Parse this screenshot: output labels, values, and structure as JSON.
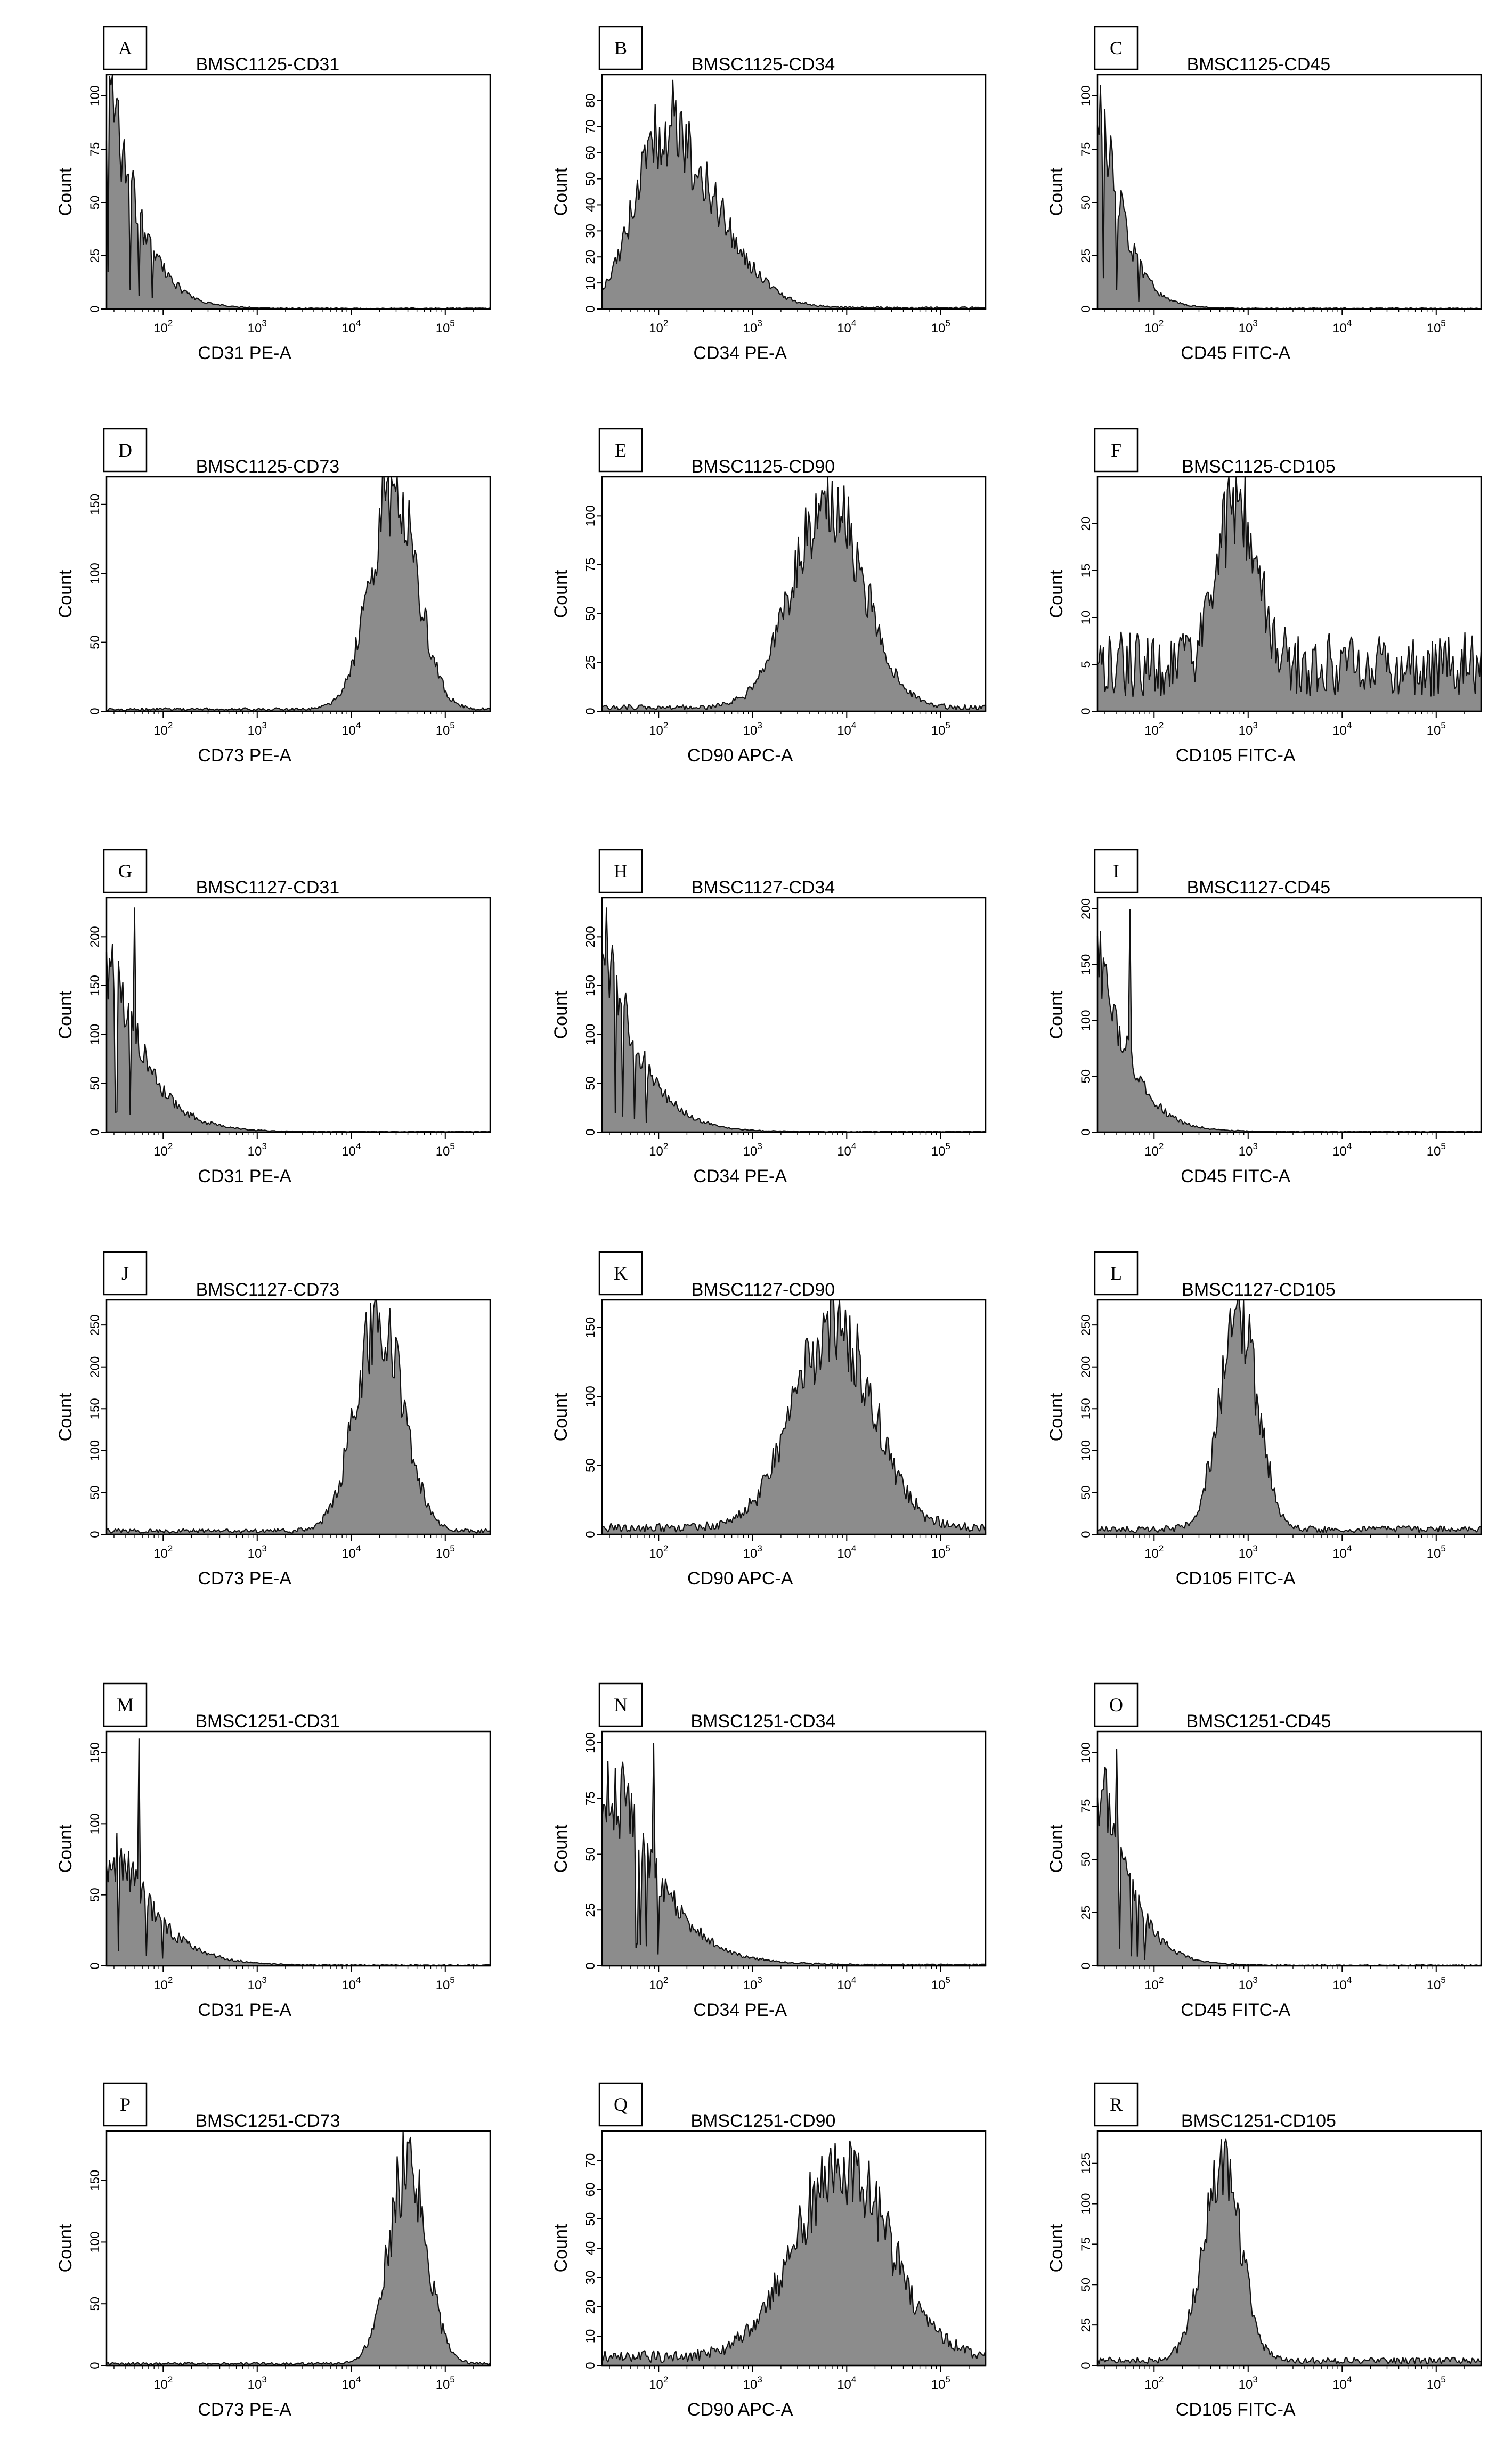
{
  "figure": {
    "columns": 3
  },
  "chart_data": [
    {
      "type": "area",
      "panel_label": "A",
      "title": "BMSC1125-CD31",
      "xlabel": "CD31 PE-A",
      "ylabel": "Count",
      "x_scale": "log",
      "xlim": [
        25,
        300000
      ],
      "ylim": [
        0,
        110
      ],
      "x_ticks": [
        {
          "label": "10",
          "sup": "2",
          "value": 100
        },
        {
          "label": "10",
          "sup": "3",
          "value": 1000
        },
        {
          "label": "10",
          "sup": "4",
          "value": 10000
        },
        {
          "label": "10",
          "sup": "5",
          "value": 100000
        }
      ],
      "y_ticks": [
        0,
        25,
        50,
        75,
        100
      ],
      "histogram": {
        "shape": "decay",
        "peak_log10": 1.42,
        "width_log10": 0.38,
        "peak_count": 100,
        "baseline": 0.3,
        "seed": 3,
        "spike_at_log10": 1.45,
        "spike_count": 105
      }
    },
    {
      "type": "area",
      "panel_label": "B",
      "title": "BMSC1125-CD34",
      "xlabel": "CD34 PE-A",
      "ylabel": "Count",
      "x_scale": "log",
      "xlim": [
        25,
        300000
      ],
      "ylim": [
        0,
        90
      ],
      "x_ticks": [
        {
          "label": "10",
          "sup": "2",
          "value": 100
        },
        {
          "label": "10",
          "sup": "3",
          "value": 1000
        },
        {
          "label": "10",
          "sup": "4",
          "value": 10000
        },
        {
          "label": "10",
          "sup": "5",
          "value": 100000
        }
      ],
      "y_ticks": [
        0,
        10,
        20,
        30,
        40,
        50,
        60,
        70,
        80
      ],
      "histogram": {
        "shape": "skew",
        "peak_log10": 2.05,
        "width_log10": 0.55,
        "peak_count": 68,
        "baseline": 0.5,
        "seed": 7,
        "spike_at_log10": 2.15,
        "spike_count": 88
      }
    },
    {
      "type": "area",
      "panel_label": "C",
      "title": "BMSC1125-CD45",
      "xlabel": "CD45 FITC-A",
      "ylabel": "Count",
      "x_scale": "log",
      "xlim": [
        25,
        300000
      ],
      "ylim": [
        0,
        110
      ],
      "x_ticks": [
        {
          "label": "10",
          "sup": "2",
          "value": 100
        },
        {
          "label": "10",
          "sup": "3",
          "value": 1000
        },
        {
          "label": "10",
          "sup": "4",
          "value": 10000
        },
        {
          "label": "10",
          "sup": "5",
          "value": 100000
        }
      ],
      "y_ticks": [
        0,
        25,
        50,
        75,
        100
      ],
      "histogram": {
        "shape": "decay",
        "peak_log10": 1.42,
        "width_log10": 0.3,
        "peak_count": 95,
        "baseline": 0.3,
        "seed": 11,
        "spike_at_log10": 1.43,
        "spike_count": 105
      }
    },
    {
      "type": "area",
      "panel_label": "D",
      "title": "BMSC1125-CD73",
      "xlabel": "CD73 PE-A",
      "ylabel": "Count",
      "x_scale": "log",
      "xlim": [
        25,
        300000
      ],
      "ylim": [
        0,
        170
      ],
      "x_ticks": [
        {
          "label": "10",
          "sup": "2",
          "value": 100
        },
        {
          "label": "10",
          "sup": "3",
          "value": 1000
        },
        {
          "label": "10",
          "sup": "4",
          "value": 10000
        },
        {
          "label": "10",
          "sup": "5",
          "value": 100000
        }
      ],
      "y_ticks": [
        0,
        50,
        100,
        150
      ],
      "histogram": {
        "shape": "gauss",
        "peak_log10": 4.45,
        "width_log10": 0.25,
        "peak_count": 160,
        "baseline": 1.5,
        "seed": 13,
        "spike_at_log10": 4.45,
        "spike_count": 165
      }
    },
    {
      "type": "area",
      "panel_label": "E",
      "title": "BMSC1125-CD90",
      "xlabel": "CD90 APC-A",
      "ylabel": "Count",
      "x_scale": "log",
      "xlim": [
        25,
        300000
      ],
      "ylim": [
        0,
        120
      ],
      "x_ticks": [
        {
          "label": "10",
          "sup": "2",
          "value": 100
        },
        {
          "label": "10",
          "sup": "3",
          "value": 1000
        },
        {
          "label": "10",
          "sup": "4",
          "value": 10000
        },
        {
          "label": "10",
          "sup": "5",
          "value": 100000
        }
      ],
      "y_ticks": [
        0,
        25,
        50,
        75,
        100
      ],
      "histogram": {
        "shape": "gauss",
        "peak_log10": 3.8,
        "width_log10": 0.38,
        "peak_count": 105,
        "baseline": 2,
        "seed": 17,
        "spike_at_log10": 3.85,
        "spike_count": 118
      }
    },
    {
      "type": "area",
      "panel_label": "F",
      "title": "BMSC1125-CD105",
      "xlabel": "CD105 FITC-A",
      "ylabel": "Count",
      "x_scale": "log",
      "xlim": [
        25,
        300000
      ],
      "ylim": [
        0,
        25
      ],
      "x_ticks": [
        {
          "label": "10",
          "sup": "2",
          "value": 100
        },
        {
          "label": "10",
          "sup": "3",
          "value": 1000
        },
        {
          "label": "10",
          "sup": "4",
          "value": 10000
        },
        {
          "label": "10",
          "sup": "5",
          "value": 100000
        }
      ],
      "y_ticks": [
        0,
        5,
        10,
        15,
        20
      ],
      "histogram": {
        "shape": "gauss",
        "peak_log10": 2.88,
        "width_log10": 0.2,
        "peak_count": 19,
        "baseline": 5,
        "seed": 19,
        "spike_at_log10": 2.9,
        "spike_count": 22.5
      }
    },
    {
      "type": "area",
      "panel_label": "G",
      "title": "BMSC1127-CD31",
      "xlabel": "CD31 PE-A",
      "ylabel": "Count",
      "x_scale": "log",
      "xlim": [
        25,
        300000
      ],
      "ylim": [
        0,
        240
      ],
      "x_ticks": [
        {
          "label": "10",
          "sup": "2",
          "value": 100
        },
        {
          "label": "10",
          "sup": "3",
          "value": 1000
        },
        {
          "label": "10",
          "sup": "4",
          "value": 10000
        },
        {
          "label": "10",
          "sup": "5",
          "value": 100000
        }
      ],
      "y_ticks": [
        0,
        50,
        100,
        150,
        200
      ],
      "histogram": {
        "shape": "decay",
        "peak_log10": 1.42,
        "width_log10": 0.45,
        "peak_count": 170,
        "baseline": 0.5,
        "seed": 23,
        "spike_at_log10": 1.7,
        "spike_count": 230
      }
    },
    {
      "type": "area",
      "panel_label": "H",
      "title": "BMSC1127-CD34",
      "xlabel": "CD34 PE-A",
      "ylabel": "Count",
      "x_scale": "log",
      "xlim": [
        25,
        300000
      ],
      "ylim": [
        0,
        240
      ],
      "x_ticks": [
        {
          "label": "10",
          "sup": "2",
          "value": 100
        },
        {
          "label": "10",
          "sup": "3",
          "value": 1000
        },
        {
          "label": "10",
          "sup": "4",
          "value": 10000
        },
        {
          "label": "10",
          "sup": "5",
          "value": 100000
        }
      ],
      "y_ticks": [
        0,
        50,
        100,
        150,
        200
      ],
      "histogram": {
        "shape": "decay",
        "peak_log10": 1.42,
        "width_log10": 0.45,
        "peak_count": 180,
        "baseline": 0.5,
        "seed": 29,
        "spike_at_log10": 1.45,
        "spike_count": 230
      }
    },
    {
      "type": "area",
      "panel_label": "I",
      "title": "BMSC1127-CD45",
      "xlabel": "CD45 FITC-A",
      "ylabel": "Count",
      "x_scale": "log",
      "xlim": [
        25,
        300000
      ],
      "ylim": [
        0,
        210
      ],
      "x_ticks": [
        {
          "label": "10",
          "sup": "2",
          "value": 100
        },
        {
          "label": "10",
          "sup": "3",
          "value": 1000
        },
        {
          "label": "10",
          "sup": "4",
          "value": 10000
        },
        {
          "label": "10",
          "sup": "5",
          "value": 100000
        }
      ],
      "y_ticks": [
        0,
        50,
        100,
        150,
        200
      ],
      "histogram": {
        "shape": "decay",
        "peak_log10": 1.42,
        "width_log10": 0.38,
        "peak_count": 150,
        "baseline": 0.5,
        "seed": 31,
        "spike_at_log10": 1.75,
        "spike_count": 200
      }
    },
    {
      "type": "area",
      "panel_label": "J",
      "title": "BMSC1127-CD73",
      "xlabel": "CD73 PE-A",
      "ylabel": "Count",
      "x_scale": "log",
      "xlim": [
        25,
        300000
      ],
      "ylim": [
        0,
        280
      ],
      "x_ticks": [
        {
          "label": "10",
          "sup": "2",
          "value": 100
        },
        {
          "label": "10",
          "sup": "3",
          "value": 1000
        },
        {
          "label": "10",
          "sup": "4",
          "value": 10000
        },
        {
          "label": "10",
          "sup": "5",
          "value": 100000
        }
      ],
      "y_ticks": [
        0,
        50,
        100,
        150,
        200,
        250
      ],
      "histogram": {
        "shape": "gauss",
        "peak_log10": 4.3,
        "width_log10": 0.25,
        "peak_count": 255,
        "baseline": 4,
        "seed": 37,
        "spike_at_log10": 4.3,
        "spike_count": 265
      }
    },
    {
      "type": "area",
      "panel_label": "K",
      "title": "BMSC1127-CD90",
      "xlabel": "CD90 APC-A",
      "ylabel": "Count",
      "x_scale": "log",
      "xlim": [
        25,
        300000
      ],
      "ylim": [
        0,
        170
      ],
      "x_ticks": [
        {
          "label": "10",
          "sup": "2",
          "value": 100
        },
        {
          "label": "10",
          "sup": "3",
          "value": 1000
        },
        {
          "label": "10",
          "sup": "4",
          "value": 10000
        },
        {
          "label": "10",
          "sup": "5",
          "value": 100000
        }
      ],
      "y_ticks": [
        0,
        50,
        100,
        150
      ],
      "histogram": {
        "shape": "gauss",
        "peak_log10": 3.85,
        "width_log10": 0.42,
        "peak_count": 150,
        "baseline": 5,
        "seed": 41,
        "spike_at_log10": 3.8,
        "spike_count": 162
      }
    },
    {
      "type": "area",
      "panel_label": "L",
      "title": "BMSC1127-CD105",
      "xlabel": "CD105 FITC-A",
      "ylabel": "Count",
      "x_scale": "log",
      "xlim": [
        25,
        300000
      ],
      "ylim": [
        0,
        280
      ],
      "x_ticks": [
        {
          "label": "10",
          "sup": "2",
          "value": 100
        },
        {
          "label": "10",
          "sup": "3",
          "value": 1000
        },
        {
          "label": "10",
          "sup": "4",
          "value": 10000
        },
        {
          "label": "10",
          "sup": "5",
          "value": 100000
        }
      ],
      "y_ticks": [
        0,
        50,
        100,
        150,
        200,
        250
      ],
      "histogram": {
        "shape": "gauss",
        "peak_log10": 2.9,
        "width_log10": 0.2,
        "peak_count": 260,
        "baseline": 6,
        "seed": 43,
        "spike_at_log10": 2.85,
        "spike_count": 268
      }
    },
    {
      "type": "area",
      "panel_label": "M",
      "title": "BMSC1251-CD31",
      "xlabel": "CD31 PE-A",
      "ylabel": "Count",
      "x_scale": "log",
      "xlim": [
        25,
        300000
      ],
      "ylim": [
        0,
        165
      ],
      "x_ticks": [
        {
          "label": "10",
          "sup": "2",
          "value": 100
        },
        {
          "label": "10",
          "sup": "3",
          "value": 1000
        },
        {
          "label": "10",
          "sup": "4",
          "value": 10000
        },
        {
          "label": "10",
          "sup": "5",
          "value": 100000
        }
      ],
      "y_ticks": [
        0,
        50,
        100,
        150
      ],
      "histogram": {
        "shape": "decay",
        "peak_log10": 1.5,
        "width_log10": 0.5,
        "peak_count": 80,
        "baseline": 0.5,
        "seed": 47,
        "spike_at_log10": 1.75,
        "spike_count": 160
      }
    },
    {
      "type": "area",
      "panel_label": "N",
      "title": "BMSC1251-CD34",
      "xlabel": "CD34 PE-A",
      "ylabel": "Count",
      "x_scale": "log",
      "xlim": [
        25,
        300000
      ],
      "ylim": [
        0,
        105
      ],
      "x_ticks": [
        {
          "label": "10",
          "sup": "2",
          "value": 100
        },
        {
          "label": "10",
          "sup": "3",
          "value": 1000
        },
        {
          "label": "10",
          "sup": "4",
          "value": 10000
        },
        {
          "label": "10",
          "sup": "5",
          "value": 100000
        }
      ],
      "y_ticks": [
        0,
        25,
        50,
        75,
        100
      ],
      "histogram": {
        "shape": "decay",
        "peak_log10": 1.6,
        "width_log10": 0.55,
        "peak_count": 78,
        "baseline": 0.5,
        "seed": 53,
        "spike_at_log10": 1.95,
        "spike_count": 100
      }
    },
    {
      "type": "area",
      "panel_label": "O",
      "title": "BMSC1251-CD45",
      "xlabel": "CD45 FITC-A",
      "ylabel": "Count",
      "x_scale": "log",
      "xlim": [
        25,
        300000
      ],
      "ylim": [
        0,
        110
      ],
      "x_ticks": [
        {
          "label": "10",
          "sup": "2",
          "value": 100
        },
        {
          "label": "10",
          "sup": "3",
          "value": 1000
        },
        {
          "label": "10",
          "sup": "4",
          "value": 10000
        },
        {
          "label": "10",
          "sup": "5",
          "value": 100000
        }
      ],
      "y_ticks": [
        0,
        25,
        50,
        75,
        100
      ],
      "histogram": {
        "shape": "decay",
        "peak_log10": 1.42,
        "width_log10": 0.38,
        "peak_count": 85,
        "baseline": 0.3,
        "seed": 59,
        "spike_at_log10": 1.6,
        "spike_count": 102
      }
    },
    {
      "type": "area",
      "panel_label": "P",
      "title": "BMSC1251-CD73",
      "xlabel": "CD73 PE-A",
      "ylabel": "Count",
      "x_scale": "log",
      "xlim": [
        25,
        300000
      ],
      "ylim": [
        0,
        190
      ],
      "x_ticks": [
        {
          "label": "10",
          "sup": "2",
          "value": 100
        },
        {
          "label": "10",
          "sup": "3",
          "value": 1000
        },
        {
          "label": "10",
          "sup": "4",
          "value": 10000
        },
        {
          "label": "10",
          "sup": "5",
          "value": 100000
        }
      ],
      "y_ticks": [
        0,
        50,
        100,
        150
      ],
      "histogram": {
        "shape": "gauss",
        "peak_log10": 4.6,
        "width_log10": 0.2,
        "peak_count": 160,
        "baseline": 1.5,
        "seed": 61,
        "spike_at_log10": 4.62,
        "spike_count": 180
      }
    },
    {
      "type": "area",
      "panel_label": "Q",
      "title": "BMSC1251-CD90",
      "xlabel": "CD90 APC-A",
      "ylabel": "Count",
      "x_scale": "log",
      "xlim": [
        25,
        300000
      ],
      "ylim": [
        0,
        80
      ],
      "x_ticks": [
        {
          "label": "10",
          "sup": "2",
          "value": 100
        },
        {
          "label": "10",
          "sup": "3",
          "value": 1000
        },
        {
          "label": "10",
          "sup": "4",
          "value": 10000
        },
        {
          "label": "10",
          "sup": "5",
          "value": 100000
        }
      ],
      "y_ticks": [
        0,
        10,
        20,
        30,
        40,
        50,
        60,
        70
      ],
      "histogram": {
        "shape": "gauss",
        "peak_log10": 3.95,
        "width_log10": 0.5,
        "peak_count": 65,
        "baseline": 3,
        "seed": 67,
        "spike_at_log10": 4.05,
        "spike_count": 74
      }
    },
    {
      "type": "area",
      "panel_label": "R",
      "title": "BMSC1251-CD105",
      "xlabel": "CD105 FITC-A",
      "ylabel": "Count",
      "x_scale": "log",
      "xlim": [
        25,
        300000
      ],
      "ylim": [
        0,
        145
      ],
      "x_ticks": [
        {
          "label": "10",
          "sup": "2",
          "value": 100
        },
        {
          "label": "10",
          "sup": "3",
          "value": 1000
        },
        {
          "label": "10",
          "sup": "4",
          "value": 10000
        },
        {
          "label": "10",
          "sup": "5",
          "value": 100000
        }
      ],
      "y_ticks": [
        0,
        25,
        50,
        75,
        100,
        125
      ],
      "histogram": {
        "shape": "gauss",
        "peak_log10": 2.72,
        "width_log10": 0.2,
        "peak_count": 125,
        "baseline": 3,
        "seed": 71,
        "spike_at_log10": 2.72,
        "spike_count": 140
      }
    }
  ],
  "colors": {
    "fill": "#8c8c8c",
    "stroke": "#111111",
    "frame": "#000000",
    "background": "#ffffff"
  }
}
